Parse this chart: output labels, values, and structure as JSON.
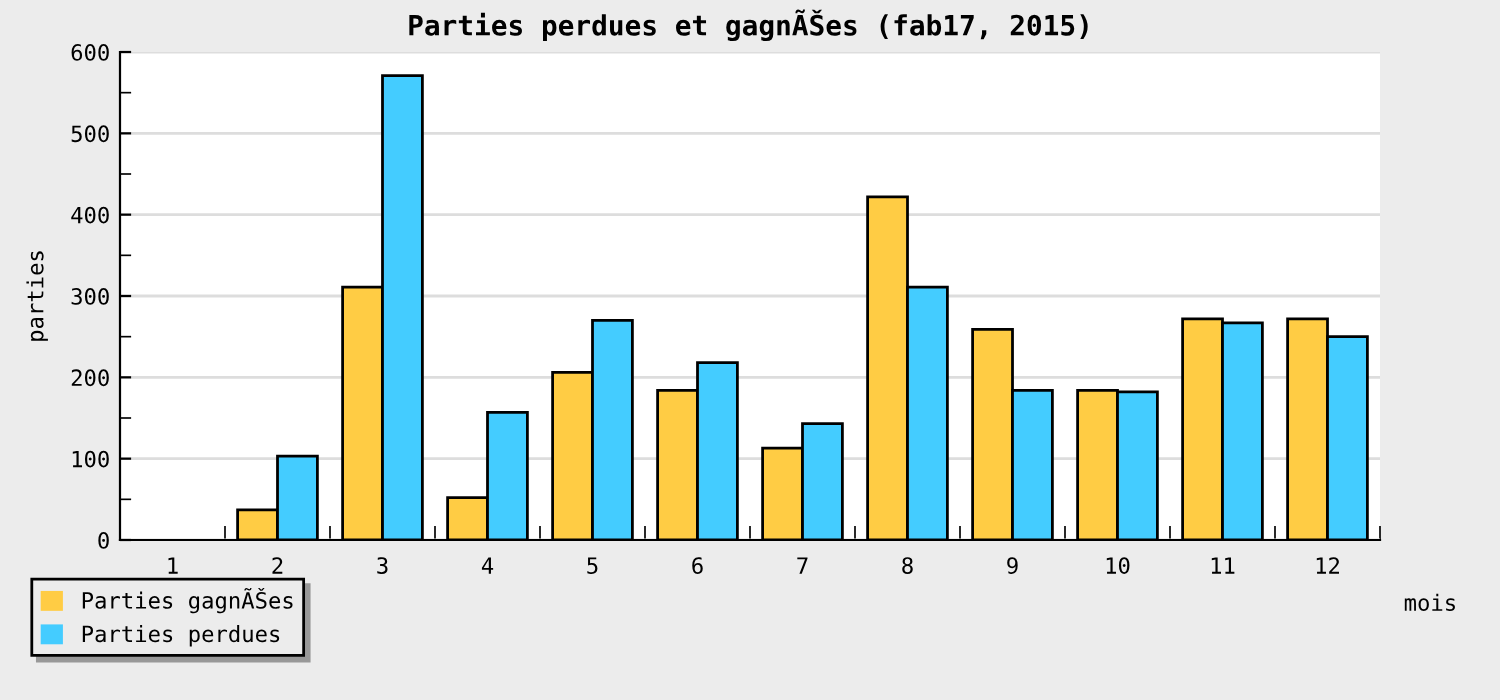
{
  "chart_data": {
    "type": "bar",
    "title": "Parties perdues et gagnÃŠes (fab17, 2015)",
    "xlabel": "mois",
    "ylabel": "parties",
    "categories": [
      "1",
      "2",
      "3",
      "4",
      "5",
      "6",
      "7",
      "8",
      "9",
      "10",
      "11",
      "12"
    ],
    "series": [
      {
        "name": "Parties gagnÃŠes",
        "color": "#ffcc44",
        "values": [
          0,
          37,
          311,
          52,
          206,
          184,
          113,
          422,
          259,
          184,
          272,
          272
        ]
      },
      {
        "name": "Parties perdues",
        "color": "#44ccff",
        "values": [
          0,
          103,
          571,
          157,
          270,
          218,
          143,
          311,
          184,
          182,
          267,
          250
        ]
      }
    ],
    "ylim": [
      0,
      600
    ],
    "yticks": [
      0,
      100,
      200,
      300,
      400,
      500,
      600
    ],
    "grid": "y",
    "legend": "bottom left"
  }
}
